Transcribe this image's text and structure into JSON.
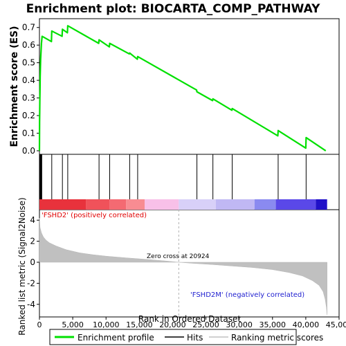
{
  "chart_data": {
    "type": "line",
    "title": "Enrichment plot: BIOCARTA_COMP_PATHWAY",
    "es_panel": {
      "ylabel": "Enrichment score (ES)",
      "ylim": [
        -0.02,
        0.75
      ],
      "yticks": [
        "0.0",
        "0.1",
        "0.2",
        "0.3",
        "0.4",
        "0.5",
        "0.6",
        "0.7"
      ],
      "ytick_values": [
        0.0,
        0.1,
        0.2,
        0.3,
        0.4,
        0.5,
        0.6,
        0.7
      ],
      "series": {
        "name": "Enrichment profile",
        "color": "#00e000",
        "x": [
          0,
          20,
          40,
          60,
          90,
          110,
          150,
          180,
          220,
          260,
          300,
          400,
          1800,
          1850,
          3400,
          3450,
          4200,
          4250,
          8900,
          8950,
          10500,
          10550,
          13500,
          13550,
          14700,
          14750,
          23600,
          23650,
          26000,
          26050,
          28900,
          28950,
          35800,
          35850,
          40000,
          40050,
          43000
        ],
        "y": [
          0.0,
          0.16,
          0.22,
          0.29,
          0.36,
          0.42,
          0.48,
          0.52,
          0.55,
          0.58,
          0.61,
          0.65,
          0.62,
          0.68,
          0.65,
          0.69,
          0.67,
          0.71,
          0.61,
          0.63,
          0.59,
          0.61,
          0.55,
          0.555,
          0.52,
          0.535,
          0.345,
          0.335,
          0.285,
          0.295,
          0.23,
          0.24,
          0.085,
          0.115,
          0.015,
          0.075,
          0.0
        ]
      }
    },
    "hits": [
      60,
      110,
      180,
      260,
      350,
      1850,
      3450,
      4250,
      8950,
      10550,
      13550,
      14750,
      23650,
      26050,
      28950,
      35850,
      40050
    ],
    "color_bar": {
      "segments": [
        {
          "from": 0,
          "to": 7000,
          "color": "#e8323c"
        },
        {
          "from": 7000,
          "to": 10500,
          "color": "#f0525a"
        },
        {
          "from": 10500,
          "to": 13000,
          "color": "#f46a72"
        },
        {
          "from": 13000,
          "to": 15800,
          "color": "#f88c92"
        },
        {
          "from": 15800,
          "to": 20924,
          "color": "#f8c0e8"
        },
        {
          "from": 20924,
          "to": 26500,
          "color": "#d8d0f8"
        },
        {
          "from": 26500,
          "to": 32300,
          "color": "#c0b8f4"
        },
        {
          "from": 32300,
          "to": 35500,
          "color": "#8a8af0"
        },
        {
          "from": 35500,
          "to": 41500,
          "color": "#5a48e8"
        },
        {
          "from": 41500,
          "to": 43200,
          "color": "#2010c8"
        }
      ]
    },
    "metric_panel": {
      "ylabel": "Ranked list metric (Signal2Noise)",
      "ylim": [
        -5.2,
        5.0
      ],
      "yticks": [
        "-4",
        "-2",
        "0",
        "2",
        "4"
      ],
      "ytick_values": [
        -4,
        -2,
        0,
        2,
        4
      ],
      "xlabel": "Rank in Ordered Dataset",
      "xlim": [
        0,
        45000
      ],
      "xticks": [
        "0",
        "5,000",
        "10,000",
        "15,000",
        "20,000",
        "25,000",
        "30,000",
        "35,000",
        "40,000",
        "45,000"
      ],
      "xtick_values": [
        0,
        5000,
        10000,
        15000,
        20000,
        25000,
        30000,
        35000,
        40000,
        45000
      ],
      "curve_x": [
        0,
        100,
        300,
        600,
        1000,
        1500,
        2500,
        4000,
        6000,
        8000,
        10000,
        13000,
        16000,
        19000,
        20924,
        23000,
        26000,
        29000,
        32000,
        35000,
        37500,
        39500,
        41000,
        42000,
        42600,
        42900,
        43100,
        43200
      ],
      "curve_y": [
        4.2,
        3.3,
        2.8,
        2.4,
        2.1,
        1.85,
        1.55,
        1.2,
        0.9,
        0.72,
        0.58,
        0.42,
        0.28,
        0.12,
        0.0,
        -0.1,
        -0.22,
        -0.36,
        -0.5,
        -0.7,
        -0.98,
        -1.3,
        -1.75,
        -2.2,
        -2.8,
        -3.5,
        -4.3,
        -5.0
      ],
      "positive_label": "'FSHD2' (positively correlated)",
      "negative_label": "'FSHD2M' (negatively correlated)",
      "zero_cross_label": "Zero cross at 20924",
      "zero_cross": 20924,
      "positive_label_color": "#e00000",
      "negative_label_color": "#2020d0"
    },
    "legend": {
      "position": "bottom",
      "entries": [
        {
          "label": "Enrichment profile",
          "color": "#00e000"
        },
        {
          "label": "Hits",
          "color": "#000000"
        },
        {
          "label": "Ranking metric scores",
          "color": "#c0c0c0"
        }
      ]
    }
  }
}
